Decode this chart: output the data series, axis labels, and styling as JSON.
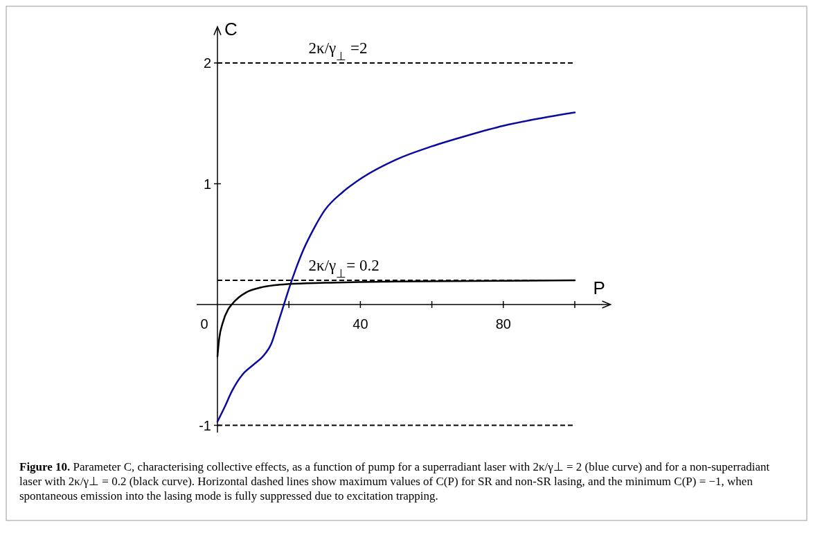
{
  "chart_data": {
    "type": "line",
    "xlabel": "P",
    "ylabel": "C",
    "xlim": [
      0,
      110
    ],
    "ylim": [
      -1.06,
      2.3
    ],
    "xticks": [
      {
        "value": 0,
        "label": "0"
      },
      {
        "value": 20,
        "label": null
      },
      40,
      {
        "value": 60,
        "label": null
      },
      80,
      {
        "value": 100,
        "label": null
      }
    ],
    "yticks": [
      -1,
      1,
      2
    ],
    "series": [
      {
        "color": "#0a0aa0",
        "x": [
          0,
          2,
          4,
          7,
          10,
          13,
          15,
          17,
          18.6,
          20,
          22,
          24,
          27,
          30,
          35,
          40,
          50,
          60,
          70,
          80,
          90,
          100
        ],
        "values": [
          -0.97,
          -0.85,
          -0.72,
          -0.58,
          -0.5,
          -0.42,
          -0.33,
          -0.15,
          0,
          0.13,
          0.3,
          0.45,
          0.63,
          0.78,
          0.93,
          1.04,
          1.2,
          1.31,
          1.4,
          1.48,
          1.54,
          1.59
        ]
      },
      {
        "color": "#000000",
        "x": [
          0,
          0.5,
          1.5,
          3,
          4,
          6,
          8,
          12,
          16,
          20,
          30,
          50,
          100
        ],
        "values": [
          -0.43,
          -0.28,
          -0.15,
          -0.04,
          0,
          0.06,
          0.1,
          0.14,
          0.16,
          0.17,
          0.18,
          0.19,
          0.2
        ]
      }
    ],
    "ref_lines": [
      {
        "axis": "y",
        "value": 2,
        "label": "2κ/γ$_{⊥}$ =2",
        "line_style": "dashed"
      },
      {
        "axis": "y",
        "value": 0.2,
        "label": "2κ/γ$_{⊥}$= 0.2",
        "line_style": "dashed"
      },
      {
        "axis": "y",
        "value": -1,
        "line_style": "dashed"
      }
    ],
    "grid": false,
    "line_style": "solid",
    "annotations": [
      "Figure 10. Parameter C, characterising collective effects, as a function of pump for a superradiant laser with 2κ/γ⊥ = 2 (blue curve) and for a non-superradiant laser with 2κ/γ⊥ = 0.2 (black curve). Horizontal dashed lines show maximum values of C(P) for SR and non-SR lasing, and the minimum C(P) = −1, when spontaneous emission into the lasing mode is fully suppressed due to excitation trapping."
    ]
  }
}
